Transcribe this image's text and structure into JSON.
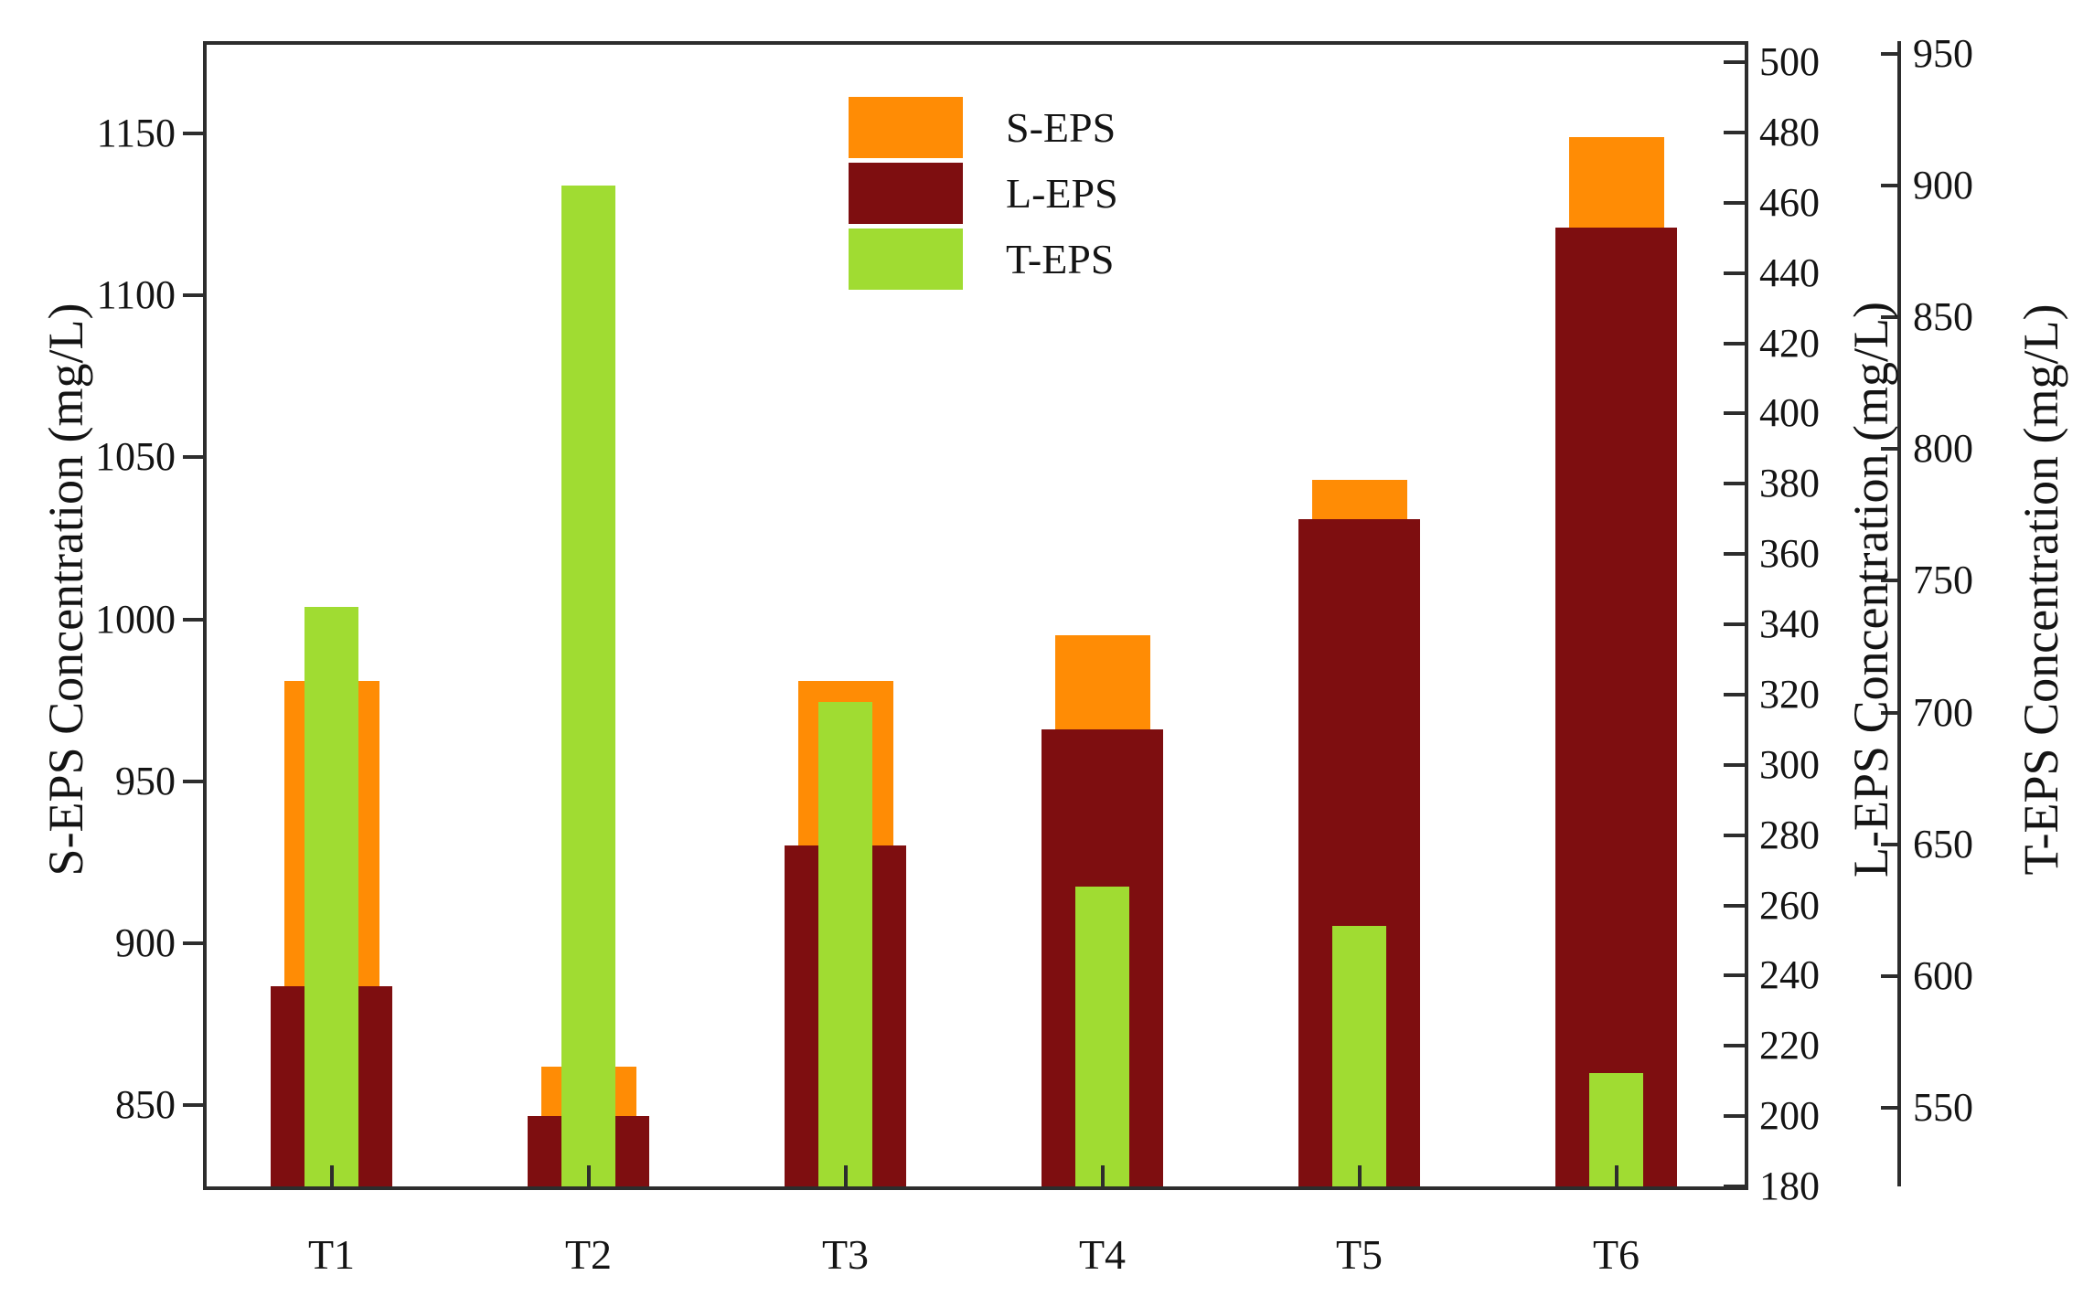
{
  "figure": {
    "background": "#FFFFFF"
  },
  "chart_data": {
    "type": "bar",
    "title": "",
    "categories": [
      "T1",
      "T2",
      "T3",
      "T4",
      "T5",
      "T6"
    ],
    "series": [
      {
        "name": "S-EPS",
        "axis": "s",
        "color": "#FF8C05",
        "values": [
          981,
          862,
          981,
          995,
          1043,
          1149
        ]
      },
      {
        "name": "L-EPS",
        "axis": "l",
        "color": "#7E0E10",
        "values": [
          237,
          200,
          277,
          310,
          370,
          453
        ]
      },
      {
        "name": "T-EPS",
        "axis": "t",
        "color": "#A0DC32",
        "values": [
          740,
          900,
          704,
          634,
          619,
          563
        ]
      }
    ],
    "axes": {
      "s": {
        "label": "S-EPS Concentration (mg/L)",
        "side": "left",
        "min": 825,
        "max": 1178.5,
        "ticks": [
          850,
          900,
          950,
          1000,
          1050,
          1100,
          1150
        ]
      },
      "l": {
        "label": "L-EPS Concentration (mg/L)",
        "side": "right-inner",
        "min": 180,
        "max": 506,
        "ticks": [
          180,
          200,
          220,
          240,
          260,
          280,
          300,
          320,
          340,
          360,
          380,
          400,
          420,
          440,
          460,
          480,
          500
        ]
      },
      "t": {
        "label": "T-EPS Concentration (mg/L)",
        "side": "right-outer",
        "min": 520,
        "max": 955,
        "ticks": [
          550,
          600,
          650,
          700,
          750,
          800,
          850,
          900,
          950
        ]
      }
    },
    "legend": {
      "position": "top-center",
      "entries": [
        "S-EPS",
        "L-EPS",
        "T-EPS"
      ]
    },
    "grid": false,
    "bar_widths": {
      "S-EPS": 104,
      "L-EPS": 133,
      "T-EPS": 59
    },
    "draw_order": [
      "S-EPS",
      "L-EPS",
      "T-EPS"
    ],
    "colors": {
      "spine": "#2D2D2D",
      "text": "#141414"
    }
  }
}
